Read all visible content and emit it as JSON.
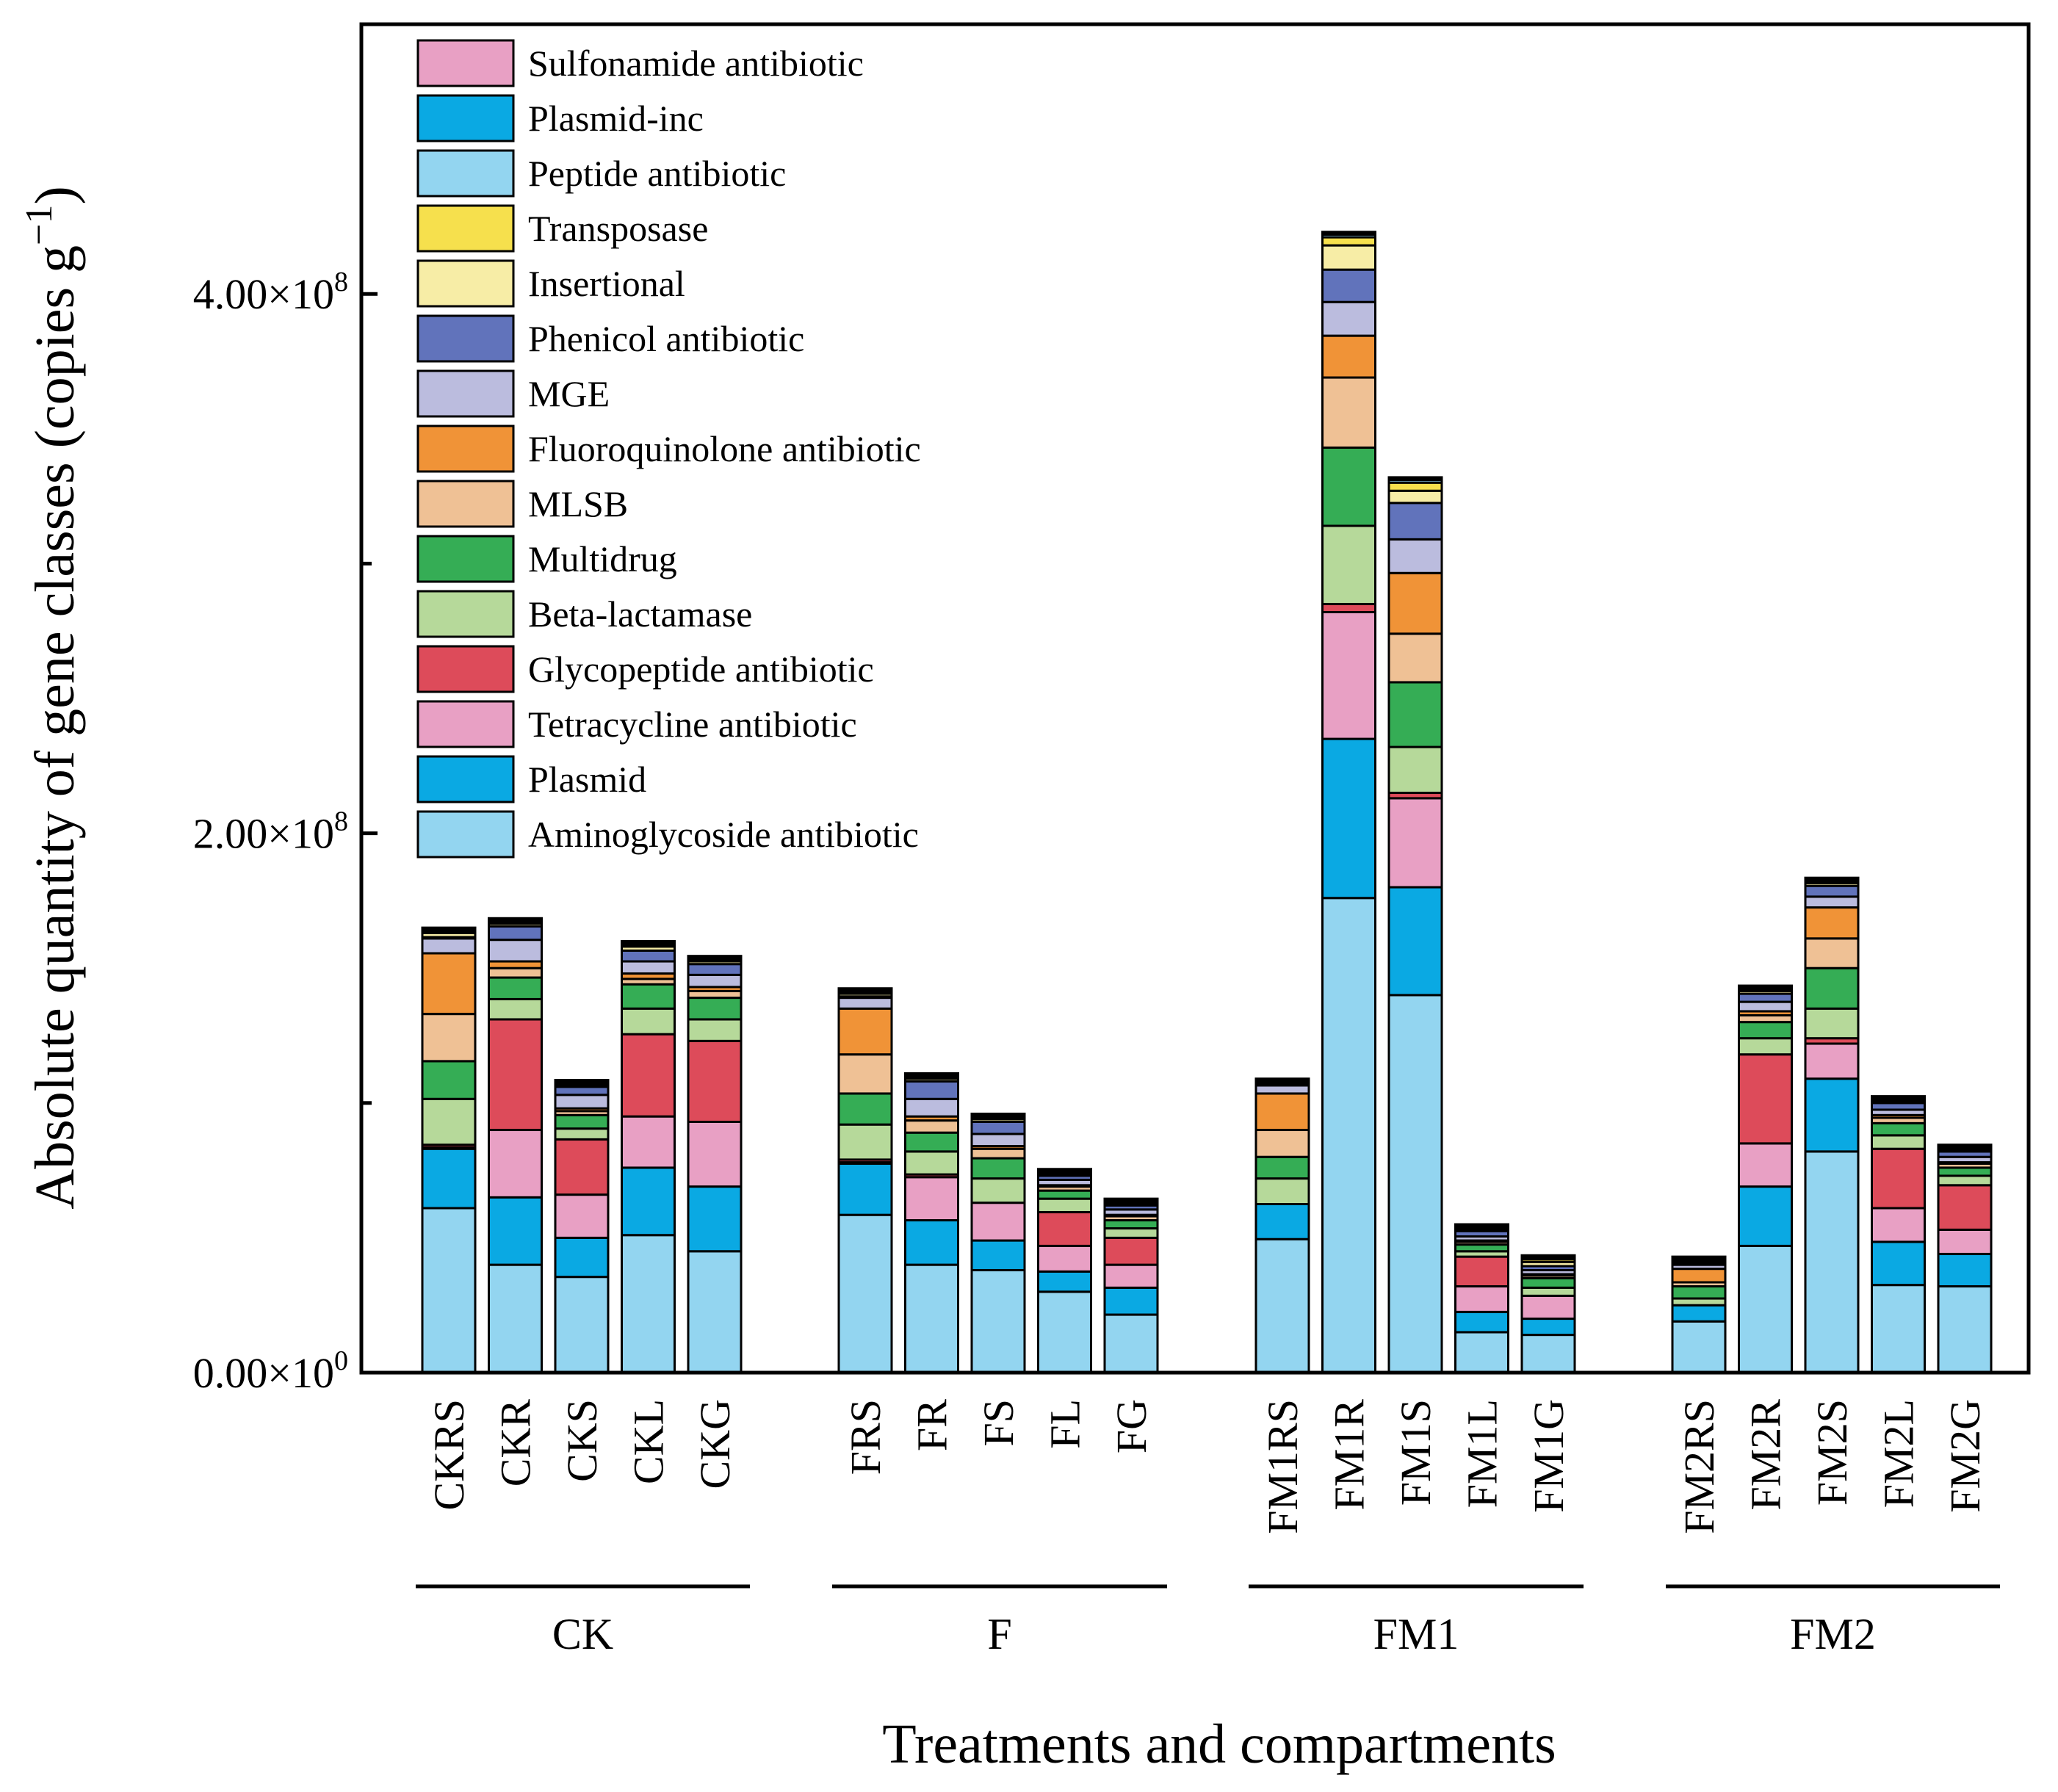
{
  "chart_data": {
    "type": "stacked-bar",
    "xlabel": "Treatments and compartments",
    "ylabel": {
      "main": "Absolute quantity of gene classes (copies g",
      "sup": "−1",
      "end": ")"
    },
    "ylim": [
      0,
      500000000
    ],
    "yticks": [
      {
        "value": 0,
        "mantissa": "0.00×10",
        "exp": "0"
      },
      {
        "value": 200000000,
        "mantissa": "2.00×10",
        "exp": "8"
      },
      {
        "value": 400000000,
        "mantissa": "4.00×10",
        "exp": "8"
      }
    ],
    "minor_ticks": [
      100000000,
      300000000
    ],
    "groups": [
      {
        "name": "CK",
        "categories": [
          "CKRS",
          "CKR",
          "CKS",
          "CKL",
          "CKG"
        ]
      },
      {
        "name": "F",
        "categories": [
          "FRS",
          "FR",
          "FS",
          "FL",
          "FG"
        ]
      },
      {
        "name": "FM1",
        "categories": [
          "FM1RS",
          "FM1R",
          "FM1S",
          "FM1L",
          "FM1G"
        ]
      },
      {
        "name": "FM2",
        "categories": [
          "FM2RS",
          "FM2R",
          "FM2S",
          "FM2L",
          "FM2G"
        ]
      }
    ],
    "categories": [
      "CKRS",
      "CKR",
      "CKS",
      "CKL",
      "CKG",
      "FRS",
      "FR",
      "FS",
      "FL",
      "FG",
      "FM1RS",
      "FM1R",
      "FM1S",
      "FM1L",
      "FM1G",
      "FM2RS",
      "FM2R",
      "FM2S",
      "FM2L",
      "FM2G"
    ],
    "legend": [
      "Sulfonamide antibiotic",
      "Plasmid-inc",
      "Peptide antibiotic",
      "Transposase",
      "Insertional",
      "Phenicol antibiotic",
      "MGE",
      "Fluoroquinolone antibiotic",
      "MLSB",
      "Multidrug",
      "Beta-lactamase",
      "Glycopeptide antibiotic",
      "Tetracycline antibiotic",
      "Plasmid",
      "Aminoglycoside antibiotic"
    ],
    "series": [
      {
        "name": "Aminoglycoside antibiotic",
        "color": "#93d5f0",
        "values": [
          61000000,
          40000000,
          35500000,
          51000000,
          45000000,
          58500000,
          40000000,
          38000000,
          30000000,
          21500000,
          49500000,
          176000000,
          140000000,
          15000000,
          14000000,
          19000000,
          47000000,
          82000000,
          32500000,
          32000000
        ]
      },
      {
        "name": "Plasmid",
        "color": "#0aa9e3",
        "values": [
          22000000,
          25000000,
          14500000,
          25000000,
          24000000,
          19000000,
          16500000,
          11000000,
          7500000,
          10000000,
          13000000,
          59000000,
          40000000,
          7500000,
          6000000,
          6000000,
          22000000,
          27000000,
          16000000,
          12000000
        ]
      },
      {
        "name": "Tetracycline antibiotic",
        "color": "#e8a0c4",
        "values": [
          500000,
          25000000,
          16000000,
          19000000,
          24000000,
          500000,
          16000000,
          14000000,
          9500000,
          8500000,
          0,
          47000000,
          33000000,
          9500000,
          8500000,
          0,
          16000000,
          13000000,
          12500000,
          9000000
        ]
      },
      {
        "name": "Glycopeptide antibiotic",
        "color": "#dd4b5a",
        "values": [
          1000000,
          41000000,
          20500000,
          30500000,
          30000000,
          1000000,
          1000000,
          0,
          12500000,
          10000000,
          0,
          3000000,
          2000000,
          11000000,
          0,
          0,
          33000000,
          2000000,
          22000000,
          16500000
        ]
      },
      {
        "name": "Beta-lactamase",
        "color": "#b6d99a",
        "values": [
          17000000,
          7500000,
          4000000,
          9500000,
          8000000,
          13000000,
          8500000,
          9000000,
          5000000,
          3500000,
          9500000,
          29000000,
          17000000,
          2000000,
          3000000,
          2500000,
          6000000,
          11000000,
          5000000,
          3500000
        ]
      },
      {
        "name": "Multidrug",
        "color": "#35ad55",
        "values": [
          14000000,
          8000000,
          5000000,
          9000000,
          8000000,
          11500000,
          7000000,
          7500000,
          3000000,
          3000000,
          8000000,
          29000000,
          24000000,
          2500000,
          3500000,
          4500000,
          6000000,
          15000000,
          4500000,
          3000000
        ]
      },
      {
        "name": "MLSB",
        "color": "#efc195",
        "values": [
          17500000,
          3500000,
          1500000,
          2000000,
          2500000,
          14500000,
          4500000,
          3500000,
          1500000,
          1500000,
          10000000,
          26000000,
          18000000,
          1000000,
          1000000,
          1500000,
          2500000,
          11000000,
          2000000,
          1500000
        ]
      },
      {
        "name": "Fluoroquinolone antibiotic",
        "color": "#f09337",
        "values": [
          22500000,
          2500000,
          1000000,
          2000000,
          1500000,
          17000000,
          1500000,
          1000000,
          500000,
          500000,
          13500000,
          15500000,
          22500000,
          500000,
          500000,
          5000000,
          1500000,
          11500000,
          1000000,
          500000
        ]
      },
      {
        "name": "MGE",
        "color": "#bbbcde",
        "values": [
          5500000,
          8000000,
          5000000,
          4500000,
          4500000,
          4000000,
          6500000,
          4500000,
          2000000,
          2000000,
          3000000,
          12500000,
          12500000,
          1500000,
          1500000,
          1500000,
          3500000,
          4000000,
          2000000,
          2000000
        ]
      },
      {
        "name": "Phenicol antibiotic",
        "color": "#6173bb",
        "values": [
          500000,
          5000000,
          3000000,
          4000000,
          4000000,
          500000,
          6500000,
          4500000,
          1500000,
          1500000,
          0,
          12000000,
          13500000,
          2000000,
          1500000,
          500000,
          3000000,
          4000000,
          2500000,
          2000000
        ]
      },
      {
        "name": "Insertional",
        "color": "#f7eda6",
        "values": [
          1500000,
          1000000,
          500000,
          1500000,
          1000000,
          1000000,
          1000000,
          1000000,
          500000,
          500000,
          500000,
          9000000,
          4500000,
          500000,
          1500000,
          500000,
          1000000,
          1000000,
          500000,
          500000
        ]
      },
      {
        "name": "Transposase",
        "color": "#f6e04d",
        "values": [
          500000,
          500000,
          500000,
          500000,
          500000,
          500000,
          500000,
          500000,
          500000,
          500000,
          500000,
          3000000,
          3000000,
          500000,
          1000000,
          500000,
          500000,
          500000,
          500000,
          500000
        ]
      },
      {
        "name": "Peptide antibiotic",
        "color": "#93d5f0",
        "values": [
          500000,
          500000,
          500000,
          500000,
          500000,
          500000,
          500000,
          500000,
          500000,
          500000,
          500000,
          1000000,
          1000000,
          500000,
          500000,
          500000,
          500000,
          500000,
          500000,
          500000
        ]
      },
      {
        "name": "Plasmid-inc",
        "color": "#0aa9e3",
        "values": [
          500000,
          500000,
          500000,
          500000,
          500000,
          500000,
          500000,
          500000,
          500000,
          500000,
          500000,
          500000,
          500000,
          500000,
          500000,
          500000,
          500000,
          500000,
          500000,
          500000
        ]
      },
      {
        "name": "Sulfonamide antibiotic",
        "color": "#e8a0c4",
        "values": [
          500000,
          500000,
          500000,
          500000,
          500000,
          500000,
          500000,
          500000,
          500000,
          500000,
          500000,
          500000,
          500000,
          500000,
          500000,
          500000,
          500000,
          500000,
          500000,
          500000
        ]
      }
    ]
  }
}
